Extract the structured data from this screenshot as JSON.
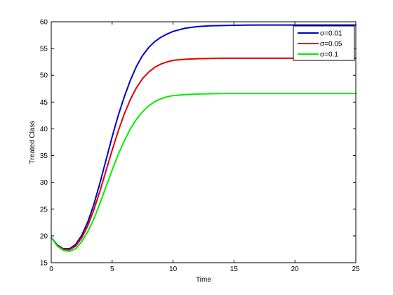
{
  "chart_data": {
    "type": "line",
    "title": "",
    "xlabel": "Time",
    "ylabel": "Treated Class",
    "xlim": [
      0,
      25
    ],
    "ylim": [
      15,
      60
    ],
    "x_ticks": [
      0,
      5,
      10,
      15,
      20,
      25
    ],
    "y_ticks": [
      15,
      20,
      25,
      30,
      35,
      40,
      45,
      50,
      55,
      60
    ],
    "grid": false,
    "legend_position": "top-right",
    "series": [
      {
        "name": "σ=0.01",
        "color": "#0000cc",
        "x": [
          0,
          0.5,
          1,
          1.5,
          2,
          2.5,
          3,
          3.5,
          4,
          4.5,
          5,
          5.5,
          6,
          6.5,
          7,
          7.5,
          8,
          8.5,
          9,
          9.5,
          10,
          11,
          12,
          13,
          14,
          15,
          16,
          17,
          18,
          19,
          20,
          21,
          22,
          23,
          24,
          25
        ],
        "y": [
          19.7,
          18.3,
          17.6,
          17.6,
          18.4,
          20.1,
          22.6,
          25.9,
          29.9,
          34.2,
          38.5,
          42.5,
          46.0,
          49.1,
          51.7,
          53.7,
          55.2,
          56.3,
          57.1,
          57.7,
          58.2,
          58.8,
          59.1,
          59.25,
          59.3,
          59.35,
          59.38,
          59.4,
          59.4,
          59.4,
          59.4,
          59.4,
          59.4,
          59.4,
          59.4,
          59.4
        ]
      },
      {
        "name": "σ=0.05",
        "color": "#e00000",
        "x": [
          0,
          0.5,
          1,
          1.5,
          2,
          2.5,
          3,
          3.5,
          4,
          4.5,
          5,
          5.5,
          6,
          6.5,
          7,
          7.5,
          8,
          8.5,
          9,
          9.5,
          10,
          11,
          12,
          13,
          14,
          15,
          16,
          17,
          18,
          19,
          20,
          21,
          22,
          23,
          24,
          25
        ],
        "y": [
          19.7,
          18.2,
          17.5,
          17.4,
          18.1,
          19.6,
          21.9,
          24.9,
          28.4,
          32.2,
          36.0,
          39.6,
          42.8,
          45.5,
          47.7,
          49.4,
          50.6,
          51.5,
          52.1,
          52.5,
          52.8,
          53.0,
          53.1,
          53.15,
          53.2,
          53.2,
          53.2,
          53.2,
          53.2,
          53.2,
          53.2,
          53.2,
          53.2,
          53.2,
          53.2,
          53.2
        ]
      },
      {
        "name": "σ=0.1",
        "color": "#00ee00",
        "x": [
          0,
          0.5,
          1,
          1.5,
          2,
          2.5,
          3,
          3.5,
          4,
          4.5,
          5,
          5.5,
          6,
          6.5,
          7,
          7.5,
          8,
          8.5,
          9,
          9.5,
          10,
          11,
          12,
          13,
          14,
          15,
          16,
          17,
          18,
          19,
          20,
          21,
          22,
          23,
          24,
          25
        ],
        "y": [
          19.7,
          18.1,
          17.3,
          17.1,
          17.6,
          18.9,
          20.8,
          23.2,
          26.1,
          29.2,
          32.3,
          35.2,
          37.8,
          40.0,
          41.8,
          43.2,
          44.3,
          45.1,
          45.6,
          46.0,
          46.2,
          46.4,
          46.5,
          46.55,
          46.6,
          46.6,
          46.6,
          46.6,
          46.6,
          46.6,
          46.6,
          46.6,
          46.6,
          46.6,
          46.6,
          46.6
        ]
      }
    ]
  }
}
